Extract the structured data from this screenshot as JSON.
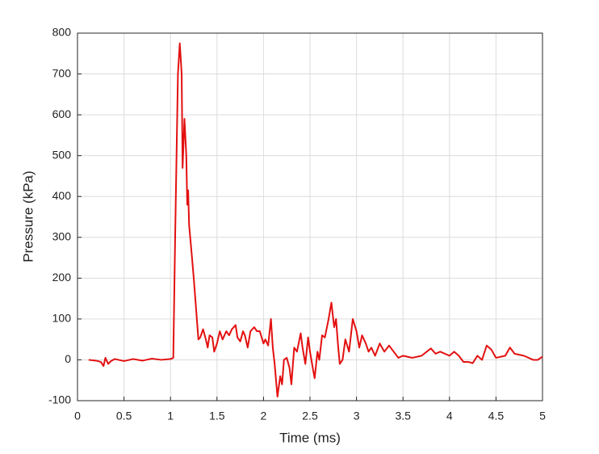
{
  "chart_data": {
    "type": "line",
    "xlabel": "Time (ms)",
    "ylabel": "Pressure (kPa)",
    "xlim": [
      0,
      5
    ],
    "ylim": [
      -100,
      800
    ],
    "xticks": [
      0,
      0.5,
      1,
      1.5,
      2,
      2.5,
      3,
      3.5,
      4,
      4.5,
      5
    ],
    "yticks": [
      -100,
      0,
      100,
      200,
      300,
      400,
      500,
      600,
      700,
      800
    ],
    "grid": true,
    "series": [
      {
        "name": "Pressure",
        "color": "#e31010",
        "x": [
          0.12,
          0.2,
          0.25,
          0.28,
          0.3,
          0.33,
          0.36,
          0.4,
          0.5,
          0.6,
          0.7,
          0.8,
          0.9,
          1.0,
          1.03,
          1.05,
          1.08,
          1.1,
          1.12,
          1.13,
          1.15,
          1.17,
          1.18,
          1.19,
          1.2,
          1.22,
          1.25,
          1.28,
          1.3,
          1.32,
          1.35,
          1.38,
          1.4,
          1.42,
          1.45,
          1.47,
          1.5,
          1.53,
          1.56,
          1.6,
          1.63,
          1.66,
          1.7,
          1.72,
          1.75,
          1.78,
          1.8,
          1.83,
          1.86,
          1.9,
          1.93,
          1.96,
          2.0,
          2.02,
          2.05,
          2.08,
          2.1,
          2.12,
          2.15,
          2.18,
          2.2,
          2.22,
          2.25,
          2.28,
          2.3,
          2.33,
          2.36,
          2.4,
          2.42,
          2.45,
          2.48,
          2.5,
          2.53,
          2.55,
          2.58,
          2.6,
          2.63,
          2.66,
          2.7,
          2.73,
          2.76,
          2.78,
          2.8,
          2.82,
          2.85,
          2.88,
          2.92,
          2.96,
          3.0,
          3.03,
          3.06,
          3.1,
          3.13,
          3.16,
          3.2,
          3.25,
          3.3,
          3.35,
          3.4,
          3.45,
          3.5,
          3.6,
          3.7,
          3.8,
          3.85,
          3.9,
          4.0,
          4.05,
          4.1,
          4.15,
          4.2,
          4.25,
          4.3,
          4.35,
          4.4,
          4.45,
          4.5,
          4.6,
          4.65,
          4.7,
          4.8,
          4.9,
          4.95,
          5.0
        ],
        "values": [
          0,
          -2,
          -5,
          -15,
          5,
          -10,
          -3,
          2,
          -3,
          2,
          -2,
          3,
          0,
          2,
          5,
          300,
          700,
          775,
          700,
          470,
          590,
          500,
          380,
          415,
          330,
          280,
          200,
          110,
          50,
          55,
          75,
          50,
          30,
          60,
          55,
          20,
          40,
          70,
          50,
          70,
          60,
          75,
          85,
          55,
          45,
          70,
          60,
          30,
          70,
          80,
          70,
          70,
          40,
          50,
          35,
          100,
          30,
          -10,
          -90,
          -40,
          -60,
          0,
          5,
          -20,
          -60,
          30,
          20,
          65,
          30,
          -10,
          55,
          20,
          -20,
          -45,
          20,
          0,
          60,
          55,
          100,
          140,
          80,
          100,
          40,
          -10,
          0,
          50,
          20,
          100,
          70,
          30,
          60,
          40,
          20,
          30,
          10,
          40,
          20,
          35,
          20,
          5,
          10,
          5,
          10,
          28,
          15,
          20,
          10,
          20,
          10,
          -5,
          -5,
          -8,
          10,
          0,
          35,
          25,
          5,
          10,
          30,
          15,
          10,
          0,
          0,
          8
        ]
      }
    ]
  }
}
